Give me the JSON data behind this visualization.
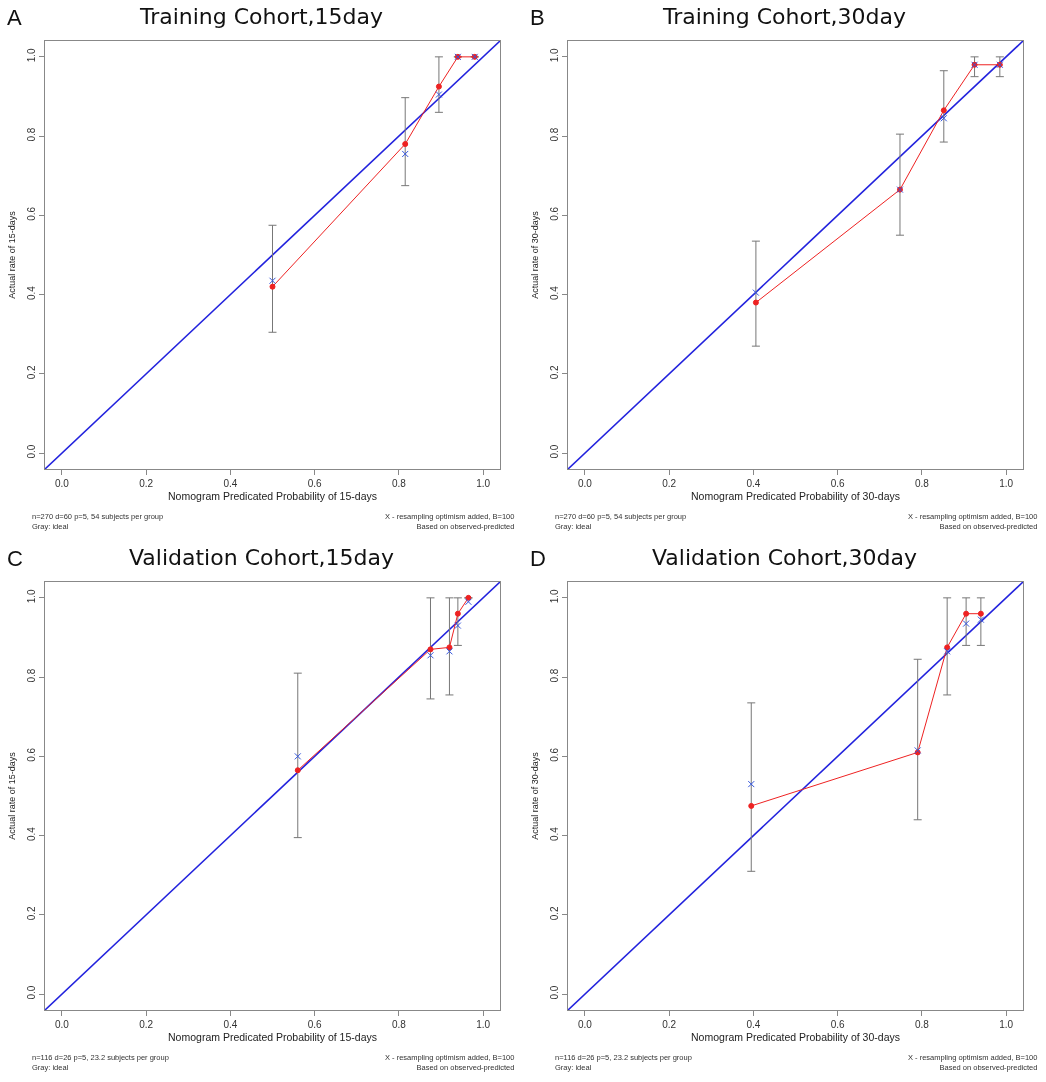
{
  "chart_data": [
    {
      "type": "line",
      "title": "Training Cohort,15day",
      "xlabel": "Nomogram Predicated Probability of 15-days",
      "ylabel": "Actual rate of 15-days",
      "annotations": [
        "A",
        "n=270 d=60 p=5, 54 subjects per group\nGray: ideal",
        "X - resampling optimism added, B=100\nBased on observed-predicted"
      ],
      "xlim": [
        -0.04,
        1.04
      ],
      "ylim": [
        -0.04,
        1.04
      ],
      "xticks": [
        {
          "value": 0,
          "label": "0.0"
        },
        {
          "value": 0.2,
          "label": "0.2"
        },
        {
          "value": 0.4,
          "label": "0.4"
        },
        {
          "value": 0.6,
          "label": "0.6"
        },
        {
          "value": 0.8,
          "label": "0.8"
        },
        {
          "value": 1,
          "label": "1.0"
        }
      ],
      "yticks": [
        {
          "value": 0,
          "label": "0.0"
        },
        {
          "value": 0.2,
          "label": "0.2"
        },
        {
          "value": 0.4,
          "label": "0.4"
        },
        {
          "value": 0.6,
          "label": "0.6"
        },
        {
          "value": 0.8,
          "label": "0.8"
        },
        {
          "value": 1,
          "label": "1.0"
        }
      ],
      "series": [
        {
          "type": "line",
          "color": "#2222dd",
          "x": [
            -0.04,
            1.04
          ],
          "values": [
            -0.04,
            1.04
          ],
          "marker": "none"
        },
        {
          "type": "line",
          "color": "#ee2222",
          "x": [
            0.5,
            0.815,
            0.895,
            0.94,
            0.98
          ],
          "values": [
            0.42,
            0.78,
            0.925,
            1.0,
            1.0
          ],
          "marker": "circle",
          "errors": [
            [
              0.305,
              0.575
            ],
            [
              0.675,
              0.897
            ],
            [
              0.86,
              1.0
            ],
            null,
            null
          ]
        },
        {
          "type": "scatter",
          "color": "#3355dd",
          "x": [
            0.5,
            0.815,
            0.895,
            0.94,
            0.98
          ],
          "values": [
            0.435,
            0.755,
            0.905,
            1.0,
            1.0
          ],
          "marker": "cross"
        }
      ]
    },
    {
      "type": "line",
      "title": "Training Cohort,30day",
      "xlabel": "Nomogram Predicated Probability of 30-days",
      "ylabel": "Actual rate of 30-days",
      "annotations": [
        "B",
        "n=270 d=60 p=5, 54 subjects per group\nGray: ideal",
        "X - resampling optimism added, B=100\nBased on observed-predicted"
      ],
      "xlim": [
        -0.04,
        1.04
      ],
      "ylim": [
        -0.04,
        1.04
      ],
      "xticks": [
        {
          "value": 0,
          "label": "0.0"
        },
        {
          "value": 0.2,
          "label": "0.2"
        },
        {
          "value": 0.4,
          "label": "0.4"
        },
        {
          "value": 0.6,
          "label": "0.6"
        },
        {
          "value": 0.8,
          "label": "0.8"
        },
        {
          "value": 1,
          "label": "1.0"
        }
      ],
      "yticks": [
        {
          "value": 0,
          "label": "0.0"
        },
        {
          "value": 0.2,
          "label": "0.2"
        },
        {
          "value": 0.4,
          "label": "0.4"
        },
        {
          "value": 0.6,
          "label": "0.6"
        },
        {
          "value": 0.8,
          "label": "0.8"
        },
        {
          "value": 1,
          "label": "1.0"
        }
      ],
      "series": [
        {
          "type": "line",
          "color": "#2222dd",
          "x": [
            -0.04,
            1.04
          ],
          "values": [
            -0.04,
            1.04
          ],
          "marker": "none"
        },
        {
          "type": "line",
          "color": "#ee2222",
          "x": [
            0.406,
            0.748,
            0.852,
            0.925,
            0.985
          ],
          "values": [
            0.38,
            0.665,
            0.865,
            0.98,
            0.98
          ],
          "marker": "circle",
          "errors": [
            [
              0.27,
              0.535
            ],
            [
              0.55,
              0.805
            ],
            [
              0.785,
              0.965
            ],
            [
              0.95,
              1.0
            ],
            [
              0.95,
              1.0
            ]
          ]
        },
        {
          "type": "scatter",
          "color": "#3355dd",
          "x": [
            0.406,
            0.748,
            0.852,
            0.925,
            0.985
          ],
          "values": [
            0.405,
            0.665,
            0.845,
            0.98,
            0.98
          ],
          "marker": "cross"
        }
      ]
    },
    {
      "type": "line",
      "title": "Validation Cohort,15day",
      "xlabel": "Nomogram Predicated Probability of 15-days",
      "ylabel": "Actual rate of 15-days",
      "annotations": [
        "C",
        "n=116 d=26 p=5, 23.2 subjects per group\nGray: ideal",
        "X - resampling optimism added, B=100\nBased on observed-predicted"
      ],
      "xlim": [
        -0.04,
        1.04
      ],
      "ylim": [
        -0.04,
        1.04
      ],
      "xticks": [
        {
          "value": 0,
          "label": "0.0"
        },
        {
          "value": 0.2,
          "label": "0.2"
        },
        {
          "value": 0.4,
          "label": "0.4"
        },
        {
          "value": 0.6,
          "label": "0.6"
        },
        {
          "value": 0.8,
          "label": "0.8"
        },
        {
          "value": 1,
          "label": "1.0"
        }
      ],
      "yticks": [
        {
          "value": 0,
          "label": "0.0"
        },
        {
          "value": 0.2,
          "label": "0.2"
        },
        {
          "value": 0.4,
          "label": "0.4"
        },
        {
          "value": 0.6,
          "label": "0.6"
        },
        {
          "value": 0.8,
          "label": "0.8"
        },
        {
          "value": 1,
          "label": "1.0"
        }
      ],
      "series": [
        {
          "type": "line",
          "color": "#2222dd",
          "x": [
            -0.04,
            1.04
          ],
          "values": [
            -0.04,
            1.04
          ],
          "marker": "none"
        },
        {
          "type": "line",
          "color": "#ee2222",
          "x": [
            0.56,
            0.875,
            0.92,
            0.94,
            0.965
          ],
          "values": [
            0.565,
            0.87,
            0.875,
            0.96,
            1.0
          ],
          "marker": "circle",
          "errors": [
            [
              0.395,
              0.81
            ],
            [
              0.745,
              1.0
            ],
            [
              0.755,
              1.0
            ],
            [
              0.88,
              1.0
            ],
            null
          ]
        },
        {
          "type": "scatter",
          "color": "#3355dd",
          "x": [
            0.56,
            0.875,
            0.92,
            0.94,
            0.965
          ],
          "values": [
            0.6,
            0.855,
            0.865,
            0.93,
            0.99
          ],
          "marker": "cross"
        }
      ]
    },
    {
      "type": "line",
      "title": "Validation Cohort,30day",
      "xlabel": "Nomogram Predicated Probability of 30-days",
      "ylabel": "Actual rate of 30-days",
      "annotations": [
        "D",
        "n=116 d=26 p=5, 23.2 subjects per group\nGray: ideal",
        "X - resampling optimism added, B=100\nBased on observed-predicted"
      ],
      "xlim": [
        -0.04,
        1.04
      ],
      "ylim": [
        -0.04,
        1.04
      ],
      "xticks": [
        {
          "value": 0,
          "label": "0.0"
        },
        {
          "value": 0.2,
          "label": "0.2"
        },
        {
          "value": 0.4,
          "label": "0.4"
        },
        {
          "value": 0.6,
          "label": "0.6"
        },
        {
          "value": 0.8,
          "label": "0.8"
        },
        {
          "value": 1,
          "label": "1.0"
        }
      ],
      "yticks": [
        {
          "value": 0,
          "label": "0.0"
        },
        {
          "value": 0.2,
          "label": "0.2"
        },
        {
          "value": 0.4,
          "label": "0.4"
        },
        {
          "value": 0.6,
          "label": "0.6"
        },
        {
          "value": 0.8,
          "label": "0.8"
        },
        {
          "value": 1,
          "label": "1.0"
        }
      ],
      "series": [
        {
          "type": "line",
          "color": "#2222dd",
          "x": [
            -0.04,
            1.04
          ],
          "values": [
            -0.04,
            1.04
          ],
          "marker": "none"
        },
        {
          "type": "line",
          "color": "#ee2222",
          "x": [
            0.395,
            0.79,
            0.86,
            0.905,
            0.94
          ],
          "values": [
            0.475,
            0.61,
            0.875,
            0.96,
            0.96
          ],
          "marker": "circle",
          "errors": [
            [
              0.31,
              0.735
            ],
            [
              0.44,
              0.845
            ],
            [
              0.755,
              1.0
            ],
            [
              0.88,
              1.0
            ],
            [
              0.88,
              1.0
            ]
          ]
        },
        {
          "type": "scatter",
          "color": "#3355dd",
          "x": [
            0.395,
            0.79,
            0.86,
            0.905,
            0.94
          ],
          "values": [
            0.53,
            0.615,
            0.865,
            0.935,
            0.945
          ],
          "marker": "cross"
        }
      ]
    }
  ]
}
